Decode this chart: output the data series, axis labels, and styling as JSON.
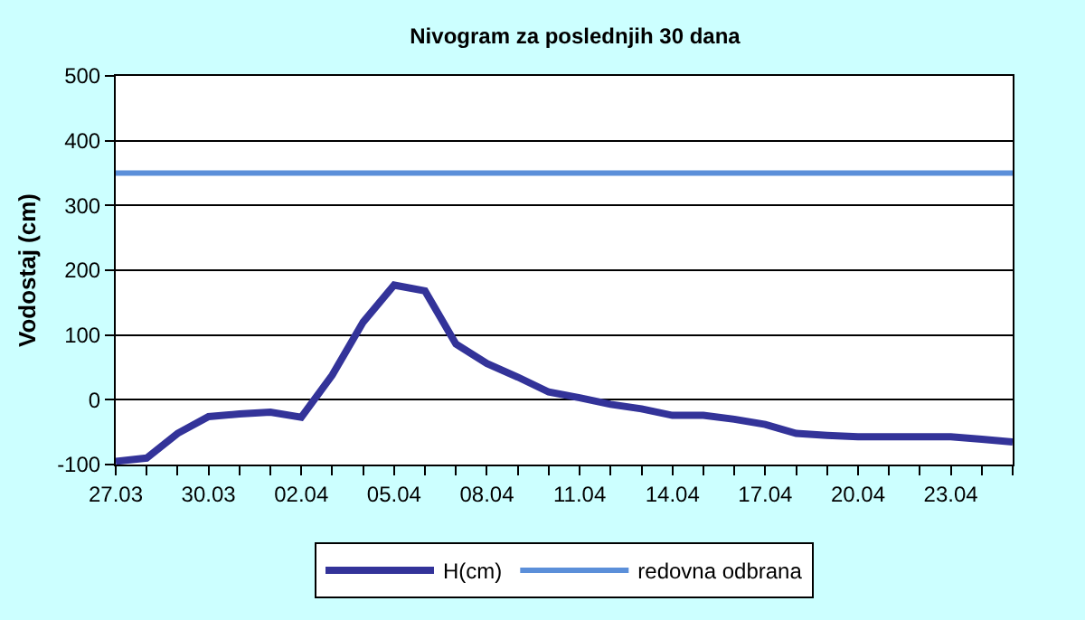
{
  "chart_data": {
    "type": "line",
    "title": "Nivogram za poslednjih 30 dana",
    "ylabel": "Vodostaj (cm)",
    "x": [
      "--03-27",
      "--03-28",
      "--03-29",
      "--03-30",
      "--03-31",
      "--04-01",
      "--04-02",
      "--04-03",
      "--04-04",
      "--04-05",
      "--04-06",
      "--04-07",
      "--04-08",
      "--04-09",
      "--04-10",
      "--04-11",
      "--04-12",
      "--04-13",
      "--04-14",
      "--04-15",
      "--04-16",
      "--04-17",
      "--04-18",
      "--04-19",
      "--04-20",
      "--04-21",
      "--04-22",
      "--04-23",
      "--04-24",
      "--04-25"
    ],
    "series": [
      {
        "name": "H(cm)",
        "color": "#333399",
        "values": [
          -95,
          -90,
          -52,
          -26,
          -22,
          -19,
          -27,
          38,
          120,
          177,
          168,
          86,
          56,
          35,
          12,
          3,
          -7,
          -14,
          -24,
          -24,
          -30,
          -38,
          -52,
          -55,
          -57,
          -57,
          -57,
          -57,
          -61,
          -65
        ]
      }
    ],
    "ref_lines": [
      {
        "axis": "y",
        "value": 350,
        "label": "redovna odbrana",
        "color": "#5b8fd9"
      }
    ],
    "xlim": [
      "--03-27",
      "--04-25"
    ],
    "xticks": [
      {
        "value": "--03-27",
        "label": "27.03"
      },
      {
        "value": "--03-28",
        "label": null
      },
      {
        "value": "--03-29",
        "label": null
      },
      {
        "value": "--03-30",
        "label": "30.03"
      },
      {
        "value": "--03-31",
        "label": null
      },
      {
        "value": "--04-01",
        "label": null
      },
      {
        "value": "--04-02",
        "label": "02.04"
      },
      {
        "value": "--04-03",
        "label": null
      },
      {
        "value": "--04-04",
        "label": null
      },
      {
        "value": "--04-05",
        "label": "05.04"
      },
      {
        "value": "--04-06",
        "label": null
      },
      {
        "value": "--04-07",
        "label": null
      },
      {
        "value": "--04-08",
        "label": "08.04"
      },
      {
        "value": "--04-09",
        "label": null
      },
      {
        "value": "--04-10",
        "label": null
      },
      {
        "value": "--04-11",
        "label": "11.04"
      },
      {
        "value": "--04-12",
        "label": null
      },
      {
        "value": "--04-13",
        "label": null
      },
      {
        "value": "--04-14",
        "label": "14.04"
      },
      {
        "value": "--04-15",
        "label": null
      },
      {
        "value": "--04-16",
        "label": null
      },
      {
        "value": "--04-17",
        "label": "17.04"
      },
      {
        "value": "--04-18",
        "label": null
      },
      {
        "value": "--04-19",
        "label": null
      },
      {
        "value": "--04-20",
        "label": "20.04"
      },
      {
        "value": "--04-21",
        "label": null
      },
      {
        "value": "--04-22",
        "label": null
      },
      {
        "value": "--04-23",
        "label": "23.04"
      },
      {
        "value": "--04-24",
        "label": null
      },
      {
        "value": "--04-25",
        "label": null
      }
    ],
    "ylim": [
      -100,
      500
    ],
    "yticks": [
      -100,
      0,
      100,
      200,
      300,
      400,
      500
    ],
    "grid": "y",
    "legend": "bottom",
    "marker": "none",
    "line_style": "solid"
  }
}
